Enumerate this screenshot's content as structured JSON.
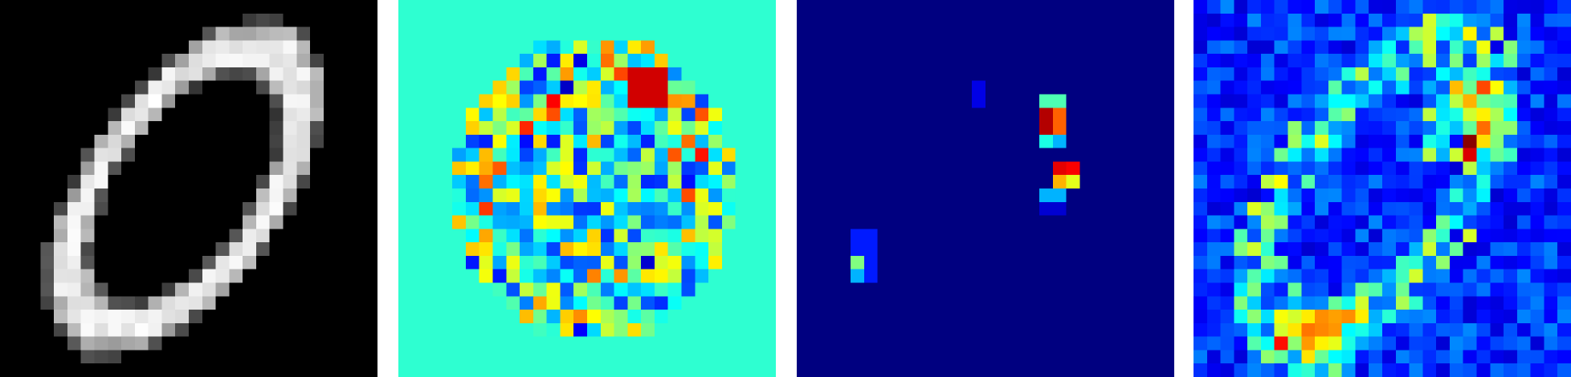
{
  "figure": {
    "grid_size": 28,
    "panels": [
      {
        "id": "input",
        "colormap": "gray",
        "background": "#000000"
      },
      {
        "id": "saliency-a",
        "colormap": "jet",
        "background": "#2effd0"
      },
      {
        "id": "saliency-b",
        "colormap": "jet",
        "background": "#00007f"
      },
      {
        "id": "saliency-c",
        "colormap": "jet",
        "background": "#0000b0"
      }
    ]
  }
}
